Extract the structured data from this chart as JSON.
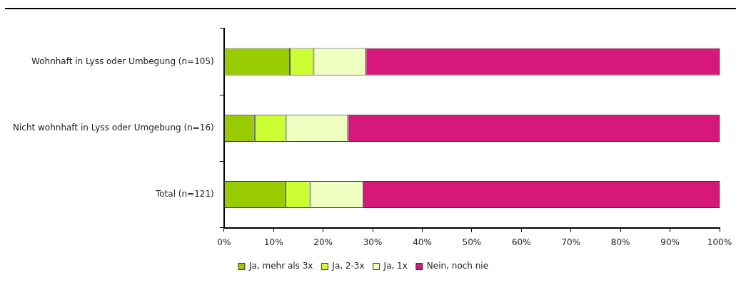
{
  "chart_data": {
    "type": "bar",
    "orientation": "horizontal",
    "stacked": true,
    "categories": [
      "Wohnhaft in Lyss oder Umbegung (n=105)",
      "Nicht wohnhaft in Lyss oder Umgebung (n=16)",
      "Total (n=121)"
    ],
    "series": [
      {
        "name": "Ja, mehr als 3x",
        "color": "#99cc00",
        "values": [
          13.3,
          6.2,
          12.4
        ]
      },
      {
        "name": "Ja, 2-3x",
        "color": "#ccff33",
        "values": [
          4.8,
          6.3,
          5.0
        ]
      },
      {
        "name": "Ja, 1x",
        "color": "#eeffc0",
        "values": [
          10.5,
          12.5,
          10.7
        ]
      },
      {
        "name": "Nein, noch nie",
        "color": "#d6187b",
        "values": [
          71.4,
          75,
          71.9
        ]
      }
    ],
    "xlim": [
      0,
      100
    ],
    "xticks": [
      {
        "value": 0,
        "label": "0%"
      },
      {
        "value": 10,
        "label": "10%"
      },
      {
        "value": 20,
        "label": "20%"
      },
      {
        "value": 30,
        "label": "30%"
      },
      {
        "value": 40,
        "label": "40%"
      },
      {
        "value": 50,
        "label": "50%"
      },
      {
        "value": 60,
        "label": "60%"
      },
      {
        "value": 70,
        "label": "70%"
      },
      {
        "value": 80,
        "label": "80%"
      },
      {
        "value": 90,
        "label": "90%"
      },
      {
        "value": 100,
        "label": "100%"
      }
    ],
    "grid": false,
    "legend": "bottom"
  }
}
